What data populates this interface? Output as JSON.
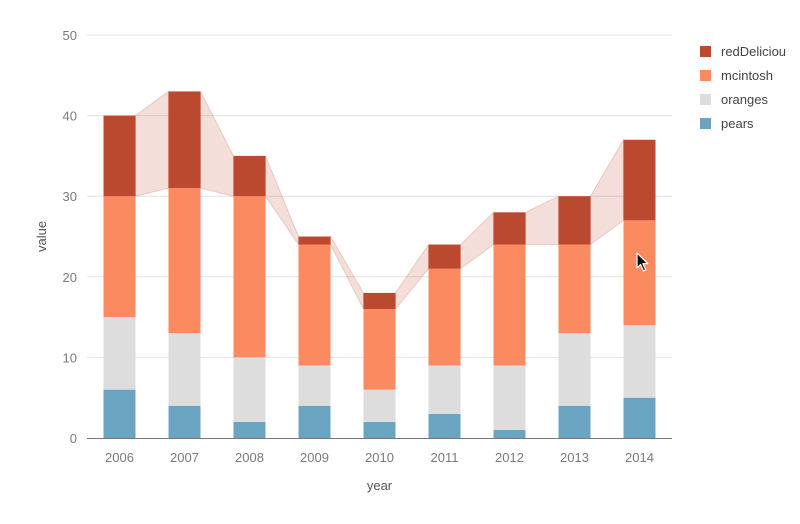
{
  "chart_data": {
    "type": "bar",
    "stacked": true,
    "title": "",
    "xlabel": "year",
    "ylabel": "value",
    "ylim": [
      0,
      50
    ],
    "yticks": [
      0,
      10,
      20,
      30,
      40,
      50
    ],
    "categories": [
      "2006",
      "2007",
      "2008",
      "2009",
      "2010",
      "2011",
      "2012",
      "2013",
      "2014"
    ],
    "series": [
      {
        "name": "pears",
        "color": "#6aa4c1",
        "values": [
          6,
          4,
          2,
          4,
          2,
          3,
          1,
          4,
          5
        ]
      },
      {
        "name": "oranges",
        "color": "#dddddd",
        "values": [
          9,
          9,
          8,
          5,
          4,
          6,
          8,
          9,
          9
        ]
      },
      {
        "name": "mcintosh",
        "color": "#fc8a61",
        "values": [
          15,
          18,
          20,
          15,
          10,
          12,
          15,
          11,
          13
        ]
      },
      {
        "name": "redDeliciou",
        "color": "#bb4930",
        "values": [
          10,
          12,
          5,
          1,
          2,
          3,
          4,
          6,
          10
        ]
      }
    ],
    "band_series": "redDeliciou",
    "band_color": "#bb4930",
    "legend_order": [
      "redDeliciou",
      "mcintosh",
      "oranges",
      "pears"
    ],
    "legend_position": "top-right",
    "grid": true
  }
}
